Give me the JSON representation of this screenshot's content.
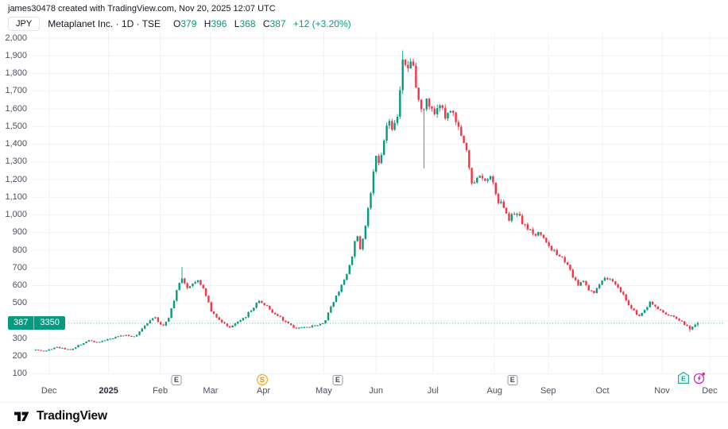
{
  "header": {
    "attribution": "james30478 created with TradingView.com, Nov 20, 2025 12:07 UTC"
  },
  "legend": {
    "symbol": "JPY",
    "series": "Metaplanet Inc. · 1D · TSE",
    "o_label": "O",
    "o": "379",
    "h_label": "H",
    "h": "396",
    "l_label": "L",
    "l": "368",
    "c_label": "C",
    "c": "387",
    "change": "+12 (+3.20%)"
  },
  "price_scale": {
    "value": "387",
    "secondary": "3350"
  },
  "colors": {
    "up": "#089981",
    "down": "#f23645",
    "text": "#131722",
    "axis_text": "#4c505b",
    "grid": "#eff1f5",
    "split": "#f0a11e",
    "upcoming": "#1fa593",
    "upcoming_bg": "#e4f6f1",
    "flash": "#c62cc4",
    "alert_dot": "#f23645"
  },
  "footer": {
    "brand": "TradingView"
  },
  "chart_data": {
    "type": "candlestick",
    "title": "Metaplanet Inc. daily candlestick chart",
    "currency": "JPY",
    "last_price": 387,
    "last_candle": {
      "open": 379,
      "high": 396,
      "low": 368,
      "close": 387
    },
    "y_axis": {
      "min": 100,
      "max": 2000,
      "step": 100,
      "labels": [
        "100",
        "200",
        "300",
        "400",
        "500",
        "600",
        "700",
        "800",
        "900",
        "1,000",
        "1,100",
        "1,200",
        "1,300",
        "1,400",
        "1,500",
        "1,600",
        "1,700",
        "1,800",
        "1,900",
        "2,000"
      ]
    },
    "x_axis": {
      "months": [
        {
          "label": "Dec",
          "f": 0.02
        },
        {
          "label": "2025",
          "f": 0.11,
          "bold": true
        },
        {
          "label": "Feb",
          "f": 0.188
        },
        {
          "label": "Mar",
          "f": 0.264
        },
        {
          "label": "Apr",
          "f": 0.344
        },
        {
          "label": "May",
          "f": 0.435
        },
        {
          "label": "Jun",
          "f": 0.514
        },
        {
          "label": "Jul",
          "f": 0.6
        },
        {
          "label": "Aug",
          "f": 0.693
        },
        {
          "label": "Sep",
          "f": 0.774
        },
        {
          "label": "Oct",
          "f": 0.856
        },
        {
          "label": "Nov",
          "f": 0.946
        },
        {
          "label": "Dec",
          "f": 1.018
        }
      ]
    },
    "num_candles": 250,
    "keyframes": [
      [
        0.0,
        240
      ],
      [
        0.012,
        228
      ],
      [
        0.03,
        252
      ],
      [
        0.054,
        238
      ],
      [
        0.078,
        290
      ],
      [
        0.096,
        280
      ],
      [
        0.114,
        300
      ],
      [
        0.132,
        322
      ],
      [
        0.15,
        310
      ],
      [
        0.168,
        390
      ],
      [
        0.18,
        418
      ],
      [
        0.192,
        370
      ],
      [
        0.202,
        430
      ],
      [
        0.212,
        560
      ],
      [
        0.22,
        640
      ],
      [
        0.228,
        592
      ],
      [
        0.236,
        610
      ],
      [
        0.246,
        632
      ],
      [
        0.256,
        560
      ],
      [
        0.264,
        462
      ],
      [
        0.272,
        420
      ],
      [
        0.282,
        392
      ],
      [
        0.294,
        362
      ],
      [
        0.306,
        400
      ],
      [
        0.318,
        430
      ],
      [
        0.328,
        470
      ],
      [
        0.336,
        518
      ],
      [
        0.348,
        490
      ],
      [
        0.36,
        442
      ],
      [
        0.372,
        410
      ],
      [
        0.384,
        380
      ],
      [
        0.393,
        350
      ],
      [
        0.402,
        370
      ],
      [
        0.414,
        365
      ],
      [
        0.426,
        380
      ],
      [
        0.436,
        392
      ],
      [
        0.444,
        460
      ],
      [
        0.456,
        560
      ],
      [
        0.468,
        650
      ],
      [
        0.477,
        740
      ],
      [
        0.484,
        915
      ],
      [
        0.489,
        792
      ],
      [
        0.496,
        900
      ],
      [
        0.504,
        1080
      ],
      [
        0.513,
        1350
      ],
      [
        0.52,
        1282
      ],
      [
        0.527,
        1450
      ],
      [
        0.534,
        1552
      ],
      [
        0.54,
        1480
      ],
      [
        0.546,
        1560
      ],
      [
        0.555,
        1882
      ],
      [
        0.562,
        1800
      ],
      [
        0.568,
        1868
      ],
      [
        0.575,
        1722
      ],
      [
        0.582,
        1602
      ],
      [
        0.592,
        1650
      ],
      [
        0.6,
        1582
      ],
      [
        0.609,
        1620
      ],
      [
        0.618,
        1562
      ],
      [
        0.628,
        1600
      ],
      [
        0.636,
        1520
      ],
      [
        0.645,
        1402
      ],
      [
        0.652,
        1350
      ],
      [
        0.659,
        1152
      ],
      [
        0.669,
        1220
      ],
      [
        0.678,
        1182
      ],
      [
        0.688,
        1230
      ],
      [
        0.696,
        1082
      ],
      [
        0.706,
        1050
      ],
      [
        0.714,
        962
      ],
      [
        0.724,
        1020
      ],
      [
        0.732,
        980
      ],
      [
        0.742,
        920
      ],
      [
        0.753,
        890
      ],
      [
        0.762,
        900
      ],
      [
        0.772,
        850
      ],
      [
        0.78,
        800
      ],
      [
        0.79,
        770
      ],
      [
        0.798,
        740
      ],
      [
        0.808,
        680
      ],
      [
        0.818,
        600
      ],
      [
        0.826,
        640
      ],
      [
        0.834,
        580
      ],
      [
        0.843,
        560
      ],
      [
        0.852,
        620
      ],
      [
        0.861,
        652
      ],
      [
        0.868,
        630
      ],
      [
        0.876,
        600
      ],
      [
        0.885,
        560
      ],
      [
        0.894,
        500
      ],
      [
        0.903,
        460
      ],
      [
        0.91,
        422
      ],
      [
        0.918,
        452
      ],
      [
        0.928,
        510
      ],
      [
        0.936,
        480
      ],
      [
        0.945,
        452
      ],
      [
        0.954,
        432
      ],
      [
        0.964,
        420
      ],
      [
        0.972,
        400
      ],
      [
        0.981,
        380
      ],
      [
        0.988,
        352
      ],
      [
        0.994,
        370
      ],
      [
        1.0,
        387
      ]
    ],
    "special_wicks": [
      {
        "f": 0.22,
        "high": 705
      },
      {
        "f": 0.555,
        "high": 1930
      },
      {
        "f": 0.585,
        "low": 1263
      },
      {
        "f": 0.988,
        "low": 338
      }
    ],
    "events": [
      {
        "type": "earnings",
        "label": "E",
        "f": 0.2125
      },
      {
        "type": "split",
        "label": "S",
        "f": 0.342
      },
      {
        "type": "earnings",
        "label": "E",
        "f": 0.456
      },
      {
        "type": "earnings",
        "label": "E",
        "f": 0.72
      },
      {
        "type": "earnings-upcoming",
        "label": "E",
        "f": 0.978
      },
      {
        "type": "flash",
        "label": "",
        "f": 1.002
      }
    ]
  }
}
